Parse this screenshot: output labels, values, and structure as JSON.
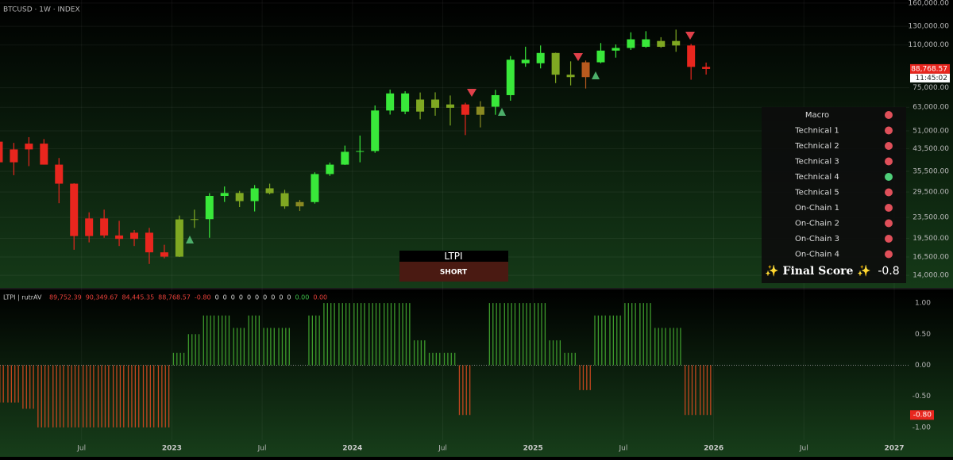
{
  "chart_data": [
    {
      "type": "candlestick",
      "title": "BTCUSD · 1W · INDEX",
      "log_scale": true,
      "x": [
        "2022-01",
        "2022-02",
        "2022-03",
        "2022-04",
        "2022-05",
        "2022-06",
        "2022-07",
        "2022-08",
        "2022-09",
        "2022-10",
        "2022-11",
        "2022-12",
        "2023-01",
        "2023-02",
        "2023-03",
        "2023-04",
        "2023-05",
        "2023-06",
        "2023-07",
        "2023-08",
        "2023-09",
        "2023-10",
        "2023-11",
        "2023-12",
        "2024-01",
        "2024-02",
        "2024-03",
        "2024-04",
        "2024-05",
        "2024-06",
        "2024-07",
        "2024-08",
        "2024-09",
        "2024-10",
        "2024-11",
        "2024-12",
        "2025-01",
        "2025-02",
        "2025-03",
        "2025-04",
        "2025-05",
        "2025-06",
        "2025-07",
        "2025-08",
        "2025-09",
        "2025-10",
        "2025-11",
        "2025-12"
      ],
      "open": [
        46300,
        38500,
        43200,
        45500,
        37700,
        31800,
        19900,
        23300,
        20000,
        19400,
        20500,
        17200,
        16550,
        23100,
        23150,
        28500,
        29250,
        27200,
        30500,
        29200,
        25950,
        26970,
        34650,
        37700,
        42280,
        42580,
        61200,
        71300,
        60600,
        67500,
        62700,
        64600,
        58900,
        63300,
        70200,
        96400,
        93400,
        102400,
        84300,
        82500,
        94200,
        104600,
        107100,
        115700,
        108200,
        114000,
        109500,
        90400
      ],
      "high": [
        47900,
        45800,
        48200,
        47400,
        40000,
        31900,
        24600,
        25200,
        22800,
        21000,
        21400,
        18400,
        23900,
        25200,
        29200,
        31000,
        29800,
        31400,
        31800,
        30100,
        27500,
        35200,
        38400,
        44700,
        48900,
        64000,
        73800,
        72700,
        71900,
        72000,
        70000,
        65600,
        66500,
        73600,
        99600,
        108300,
        109500,
        102700,
        95000,
        95700,
        111900,
        110500,
        123200,
        124400,
        117900,
        126200,
        111000,
        94000
      ],
      "low": [
        33000,
        34300,
        37200,
        37700,
        26700,
        17600,
        18800,
        19600,
        18200,
        18200,
        15500,
        16300,
        16500,
        21400,
        19600,
        27000,
        25800,
        24800,
        28900,
        25400,
        24900,
        26600,
        34100,
        37600,
        38500,
        41900,
        59000,
        59200,
        56600,
        58400,
        53500,
        49100,
        52600,
        58900,
        66800,
        90500,
        89200,
        78200,
        76600,
        74500,
        93400,
        98200,
        105200,
        107300,
        107300,
        103500,
        80600,
        84400
      ],
      "close": [
        38500,
        43200,
        45500,
        37700,
        31800,
        19900,
        23300,
        20000,
        19400,
        20500,
        17200,
        16550,
        23100,
        23150,
        28500,
        29250,
        27200,
        30500,
        29200,
        25950,
        26970,
        34650,
        37700,
        42280,
        42580,
        61200,
        71300,
        60600,
        67500,
        62700,
        64600,
        58900,
        63300,
        70200,
        96400,
        93400,
        102400,
        84300,
        82500,
        94200,
        104600,
        107100,
        115700,
        108200,
        114000,
        109500,
        90400,
        88768.57
      ],
      "ylim": [
        12600,
        164500
      ],
      "yticks": [
        {
          "value": 160000,
          "label": "160,000.00"
        },
        {
          "value": 130000,
          "label": "130,000.00"
        },
        {
          "value": 110000,
          "label": "110,000.00"
        },
        {
          "value": 75000,
          "label": "75,000.00"
        },
        {
          "value": 63000,
          "label": "63,000.00"
        },
        {
          "value": 51000,
          "label": "51,000.00"
        },
        {
          "value": 43500,
          "label": "43,500.00"
        },
        {
          "value": 35500,
          "label": "35,500.00"
        },
        {
          "value": 29500,
          "label": "29,500.00"
        },
        {
          "value": 23500,
          "label": "23,500.00"
        },
        {
          "value": 19500,
          "label": "19,500.00"
        },
        {
          "value": 16500,
          "label": "16,500.00"
        },
        {
          "value": 14000,
          "label": "14,000.00"
        }
      ],
      "price_label": "88,768.57",
      "countdown": "11:45:02",
      "grid": true
    },
    {
      "type": "bar",
      "title": "LTPI | rutrAV",
      "header_values": [
        "89,752.39",
        "90,349.67",
        "84,445.35",
        "88,768.57",
        "-0.80",
        "0",
        "0",
        "0",
        "0",
        "0",
        "0",
        "0",
        "0",
        "0",
        "0",
        "0.00",
        "0.00"
      ],
      "x": [
        "2022-01",
        "2022-02",
        "2022-03",
        "2022-04",
        "2022-05",
        "2022-06",
        "2022-07",
        "2022-08",
        "2022-09",
        "2022-10",
        "2022-11",
        "2022-12",
        "2023-01",
        "2023-02",
        "2023-03",
        "2023-04",
        "2023-05",
        "2023-06",
        "2023-07",
        "2023-08",
        "2023-09",
        "2023-10",
        "2023-11",
        "2023-12",
        "2024-01",
        "2024-02",
        "2024-03",
        "2024-04",
        "2024-05",
        "2024-06",
        "2024-07",
        "2024-08",
        "2024-09",
        "2024-10",
        "2024-11",
        "2024-12",
        "2025-01",
        "2025-02",
        "2025-03",
        "2025-04",
        "2025-05",
        "2025-06",
        "2025-07",
        "2025-08",
        "2025-09",
        "2025-10",
        "2025-11",
        "2025-12"
      ],
      "values": [
        -0.6,
        -0.6,
        -0.7,
        -1,
        -1,
        -1,
        -1,
        -1,
        -1,
        -1,
        -1,
        -1,
        0.2,
        0.5,
        0.8,
        0.8,
        0.6,
        0.8,
        0.6,
        0.6,
        0,
        0.8,
        1,
        1,
        1,
        1,
        1,
        1,
        0.4,
        0.2,
        0.2,
        -0.8,
        0,
        1,
        1,
        1,
        1,
        0.4,
        0.2,
        -0.4,
        0.8,
        0.8,
        1,
        1,
        0.6,
        0.6,
        -0.8,
        -0.8
      ],
      "last_label": "-0.80",
      "positive_color": "#3d9a2c",
      "negative_color": "#c4461f",
      "ylim": [
        -1.205,
        1.218
      ],
      "yticks": [
        {
          "value": 1,
          "label": "1.00"
        },
        {
          "value": 0.5,
          "label": "0.50"
        },
        {
          "value": 0,
          "label": "0.00"
        },
        {
          "value": -0.5,
          "label": "-0.50"
        },
        {
          "value": -1,
          "label": "-1.00"
        }
      ],
      "xticks": [
        {
          "value": "2022-07",
          "label": "Jul"
        },
        {
          "value": "2023-01",
          "label": "2023"
        },
        {
          "value": "2023-07",
          "label": "Jul"
        },
        {
          "value": "2024-01",
          "label": "2024"
        },
        {
          "value": "2024-07",
          "label": "Jul"
        },
        {
          "value": "2025-01",
          "label": "2025"
        },
        {
          "value": "2025-07",
          "label": "Jul"
        },
        {
          "value": "2026-01",
          "label": "2026"
        },
        {
          "value": "2026-07",
          "label": "Jul"
        },
        {
          "value": "2027-01",
          "label": "2027"
        }
      ]
    }
  ],
  "panel": {
    "rows": [
      {
        "label": "Macro",
        "color": "#e0505a"
      },
      {
        "label": "Technical 1",
        "color": "#e0505a"
      },
      {
        "label": "Technical 2",
        "color": "#e0505a"
      },
      {
        "label": "Technical 3",
        "color": "#e0505a"
      },
      {
        "label": "Technical 4",
        "color": "#4fcf7a"
      },
      {
        "label": "Technical 5",
        "color": "#e0505a"
      },
      {
        "label": "On-Chain 1",
        "color": "#e0505a"
      },
      {
        "label": "On-Chain 2",
        "color": "#e0505a"
      },
      {
        "label": "On-Chain 3",
        "color": "#e0505a"
      },
      {
        "label": "On-Chain 4",
        "color": "#e0505a"
      }
    ],
    "final_label": "✨ Final Score ✨",
    "final_value": -0.8
  },
  "signal": {
    "title": "LTPI",
    "state": "SHORT"
  }
}
